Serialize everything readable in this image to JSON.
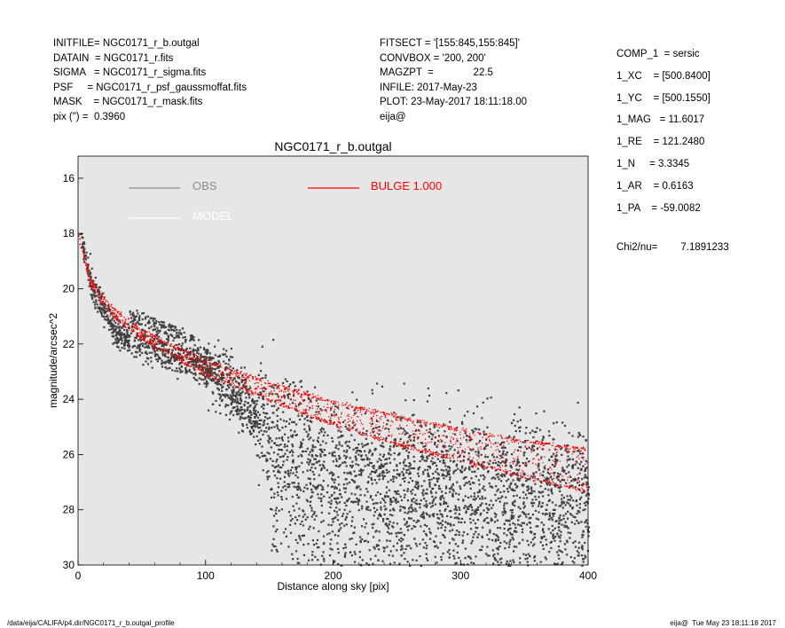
{
  "header_left": [
    "INITFILE= NGC0171_r_b.outgal",
    "DATAIN  = NGC0171_r.fits",
    "SIGMA   = NGC0171_r_sigma.fits",
    "PSF     = NGC0171_r_psf_gaussmoffat.fits",
    "MASK    = NGC0171_r_mask.fits",
    "pix (\") =  0.3960"
  ],
  "header_mid": [
    "FITSECT = '[155:845,155:845]'",
    "CONVBOX = '200, 200'",
    "MAGZPT  =              22.5",
    "INFILE: 2017-May-23",
    "PLOT: 23-May-2017 18:11:18.00",
    "eija@"
  ],
  "header_right": [
    "COMP_1  = sersic",
    "1_XC    = [500.8400]",
    "1_YC    = [500.1550]",
    "1_MAG   = 11.6017",
    "1_RE    = 121.2480",
    "1_N     = 3.3345",
    "1_AR    = 0.6163",
    "1_PA    = -59.0082"
  ],
  "chi2": {
    "label": "Chi2/nu=",
    "value": "7.1891233"
  },
  "footer_left": "/data/eija/CALIFA/p4.dir/NGC0171_r_b.outgal_profile",
  "footer_right": "eija@  Tue May 23 18:11:18 2017",
  "colors": {
    "plot_bg": "#e6e6e6",
    "obs": "#3f3f3f",
    "obs_legend": "#8c8c8c",
    "model": "#ffffff",
    "bulge": "#ff0000"
  },
  "chart_data": {
    "type": "scatter",
    "title": "NGC0171_r_b.outgal",
    "xlabel": "Distance along sky [pix]",
    "ylabel": "magnitude/arcsec^2",
    "xlim": [
      0,
      400
    ],
    "ylim": [
      30,
      15.2
    ],
    "y_inverted": true,
    "xticks": [
      0,
      100,
      200,
      300,
      400
    ],
    "yticks": [
      16,
      18,
      20,
      22,
      24,
      26,
      28,
      30
    ],
    "grid": false,
    "legend": [
      {
        "label": "OBS",
        "color": "#8c8c8c"
      },
      {
        "label": "MODEL",
        "color": "#ffffff"
      },
      {
        "label": "BULGE  1.000",
        "color": "#ff0000"
      }
    ],
    "series": [
      {
        "name": "OBS",
        "description_points": [
          [
            0,
            17.8
          ],
          [
            10,
            19.8
          ],
          [
            20,
            20.8
          ],
          [
            30,
            21.6
          ],
          [
            50,
            21.9
          ],
          [
            70,
            22.3
          ],
          [
            100,
            22.8
          ],
          [
            120,
            23.6
          ],
          [
            150,
            25.0
          ],
          [
            180,
            25.6
          ],
          [
            200,
            26.3
          ],
          [
            250,
            26.5
          ],
          [
            300,
            26.8
          ],
          [
            400,
            27.2
          ]
        ]
      },
      {
        "name": "BULGE  1.000",
        "upper_envelope": [
          [
            0,
            18.0
          ],
          [
            10,
            19.7
          ],
          [
            25,
            20.6
          ],
          [
            50,
            21.5
          ],
          [
            100,
            22.6
          ],
          [
            150,
            23.4
          ],
          [
            200,
            24.1
          ],
          [
            250,
            24.6
          ],
          [
            300,
            25.1
          ],
          [
            350,
            25.5
          ],
          [
            400,
            25.8
          ]
        ],
        "lower_envelope": [
          [
            0,
            18.1
          ],
          [
            10,
            19.9
          ],
          [
            25,
            20.9
          ],
          [
            50,
            21.8
          ],
          [
            100,
            23.1
          ],
          [
            150,
            24.0
          ],
          [
            200,
            24.9
          ],
          [
            250,
            25.6
          ],
          [
            300,
            26.2
          ],
          [
            350,
            26.8
          ],
          [
            400,
            27.3
          ]
        ]
      }
    ]
  }
}
